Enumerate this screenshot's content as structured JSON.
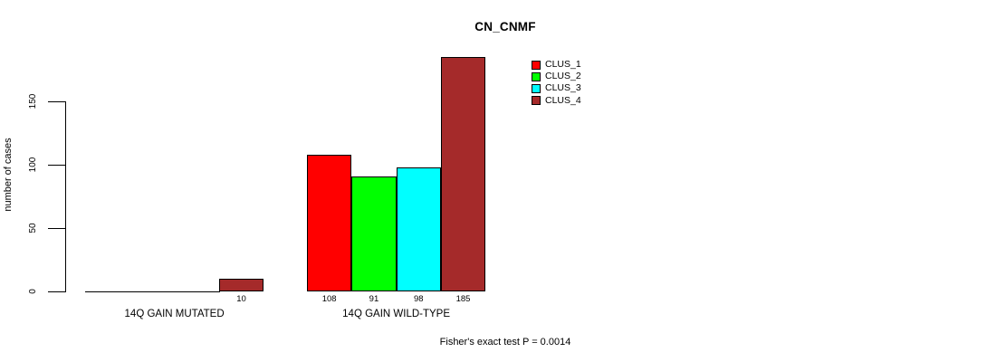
{
  "chart_data": {
    "type": "bar",
    "title": "CN_CNMF",
    "ylabel": "number of cases",
    "xlabel": "",
    "annotation": "Fisher's exact test P = 0.0014",
    "categories": [
      "14Q GAIN MUTATED",
      "14Q GAIN WILD-TYPE"
    ],
    "series": [
      {
        "name": "CLUS_1",
        "color": "#FF0000",
        "values": [
          0,
          108
        ]
      },
      {
        "name": "CLUS_2",
        "color": "#00FF00",
        "values": [
          0,
          91
        ]
      },
      {
        "name": "CLUS_3",
        "color": "#00FFFF",
        "values": [
          0,
          98
        ]
      },
      {
        "name": "CLUS_4",
        "color": "#A52A2A",
        "values": [
          10,
          185
        ]
      }
    ],
    "bar_value_labels": {
      "show_zero": false
    },
    "yticks": [
      0,
      50,
      100,
      150
    ],
    "ylim": [
      0,
      150
    ],
    "grid": false,
    "legend_position": "top-right",
    "background_color": "#FFFFFF",
    "axis_color": "#000000"
  }
}
